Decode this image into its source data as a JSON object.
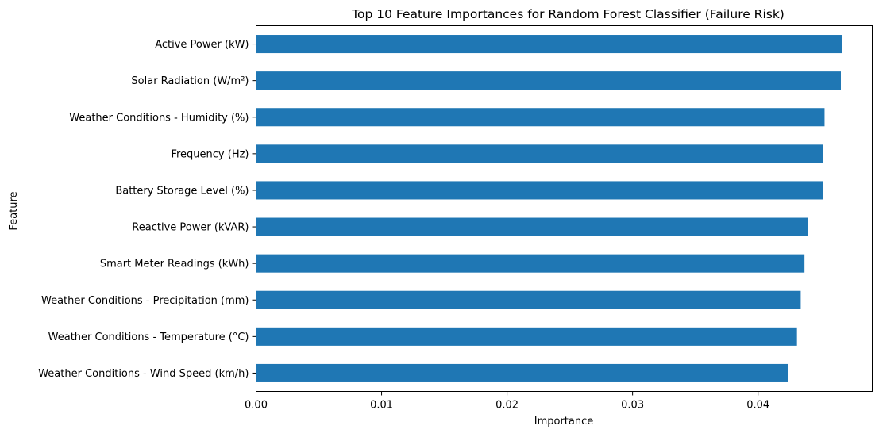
{
  "chart_data": {
    "type": "bar",
    "orientation": "horizontal",
    "title": "Top 10 Feature Importances for Random Forest Classifier (Failure Risk)",
    "xlabel": "Importance",
    "ylabel": "Feature",
    "categories": [
      "Active Power (kW)",
      "Solar Radiation (W/m²)",
      "Weather Conditions - Humidity (%)",
      "Frequency (Hz)",
      "Battery Storage Level (%)",
      "Reactive Power (kVAR)",
      "Smart Meter Readings (kWh)",
      "Weather Conditions - Precipitation (mm)",
      "Weather Conditions - Temperature (°C)",
      "Weather Conditions - Wind Speed (km/h)"
    ],
    "values": [
      0.0467,
      0.0466,
      0.0453,
      0.0452,
      0.0452,
      0.044,
      0.0437,
      0.0434,
      0.0431,
      0.0424
    ],
    "xlim": [
      0,
      0.0491
    ],
    "xticks": [
      "0.00",
      "0.01",
      "0.02",
      "0.03",
      "0.04"
    ],
    "bar_color": "#1f77b4",
    "grid": false,
    "legend": false
  }
}
